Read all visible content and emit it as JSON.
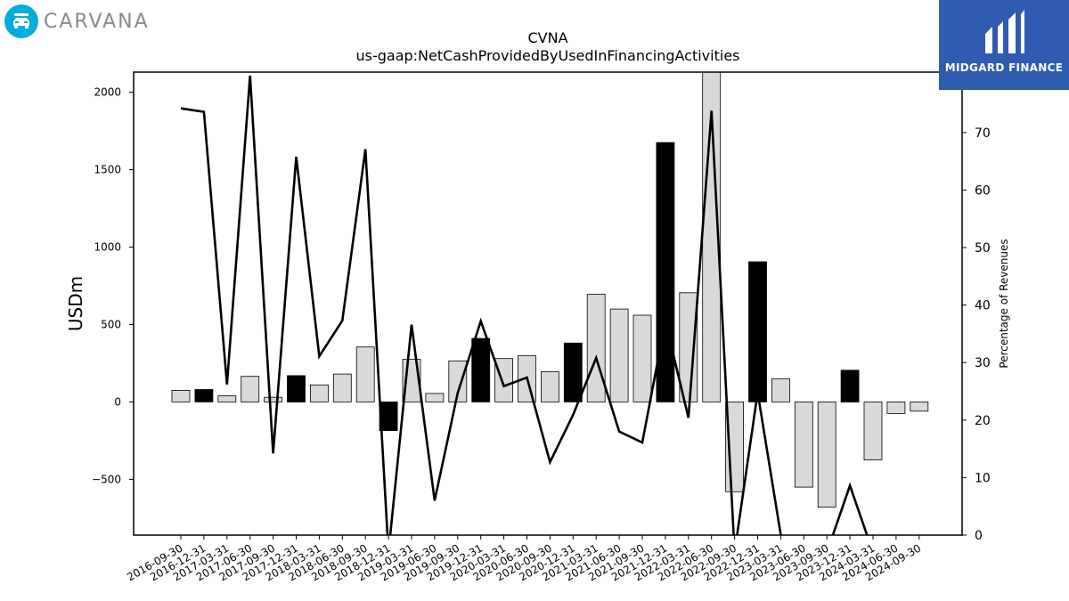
{
  "branding": {
    "company_logo_text": "CARVANA",
    "company_logo_icon": "car-icon",
    "badge_text": "MIDGARD FINANCE",
    "badge_icon": "midgard-logo-icon",
    "colors": {
      "company_accent": "#00aed9",
      "badge_background": "#2f5bb0"
    }
  },
  "chart_data": {
    "type": "bar",
    "title": "CVNA",
    "subtitle": "us-gaap:NetCashProvidedByUsedInFinancingActivities",
    "ylabel": "USDm",
    "y2label": "Percentage of Revenues",
    "ylim": [
      -860,
      2130
    ],
    "y2lim": [
      0,
      80.5
    ],
    "yticks": [
      -500,
      0,
      500,
      1000,
      1500,
      2000
    ],
    "y2ticks": [
      0,
      10,
      20,
      30,
      40,
      50,
      60,
      70,
      80
    ],
    "ytick_labels": [
      "−500",
      "0",
      "500",
      "1000",
      "1500",
      "2000"
    ],
    "y2tick_labels": [
      "0",
      "10",
      "20",
      "30",
      "40",
      "50",
      "60",
      "70",
      "80"
    ],
    "grid": false,
    "categories": [
      "2016-09-30",
      "2016-12-31",
      "2017-03-31",
      "2017-06-30",
      "2017-09-30",
      "2017-12-31",
      "2018-03-31",
      "2018-06-30",
      "2018-09-30",
      "2018-12-31",
      "2019-03-31",
      "2019-06-30",
      "2019-09-30",
      "2019-12-31",
      "2020-03-31",
      "2020-06-30",
      "2020-09-30",
      "2020-12-31",
      "2021-03-31",
      "2021-06-30",
      "2021-09-30",
      "2021-12-31",
      "2022-03-31",
      "2022-06-30",
      "2022-09-30",
      "2022-12-31",
      "2023-03-31",
      "2023-06-30",
      "2023-09-30",
      "2023-12-31",
      "2024-03-31",
      "2024-06-30",
      "2024-09-30"
    ],
    "series": [
      {
        "role": "bars",
        "axis": "left",
        "values": [
          75,
          80,
          40,
          165,
          30,
          170,
          110,
          180,
          355,
          -185,
          275,
          55,
          265,
          410,
          280,
          300,
          195,
          380,
          695,
          600,
          560,
          1675,
          705,
          2130,
          -580,
          905,
          150,
          -550,
          -680,
          205,
          -375,
          -75,
          -60
        ],
        "colors": [
          "#d9d9d9",
          "#000000",
          "#d9d9d9",
          "#d9d9d9",
          "#d9d9d9",
          "#000000",
          "#d9d9d9",
          "#d9d9d9",
          "#d9d9d9",
          "#000000",
          "#d9d9d9",
          "#d9d9d9",
          "#d9d9d9",
          "#000000",
          "#d9d9d9",
          "#d9d9d9",
          "#d9d9d9",
          "#000000",
          "#d9d9d9",
          "#d9d9d9",
          "#d9d9d9",
          "#000000",
          "#d9d9d9",
          "#d9d9d9",
          "#d9d9d9",
          "#000000",
          "#d9d9d9",
          "#d9d9d9",
          "#d9d9d9",
          "#000000",
          "#d9d9d9",
          "#d9d9d9",
          "#d9d9d9"
        ]
      },
      {
        "role": "line",
        "axis": "right",
        "values": [
          74.2,
          73.6,
          26.2,
          79.9,
          14.2,
          65.8,
          31.1,
          37.3,
          67.1,
          -3,
          36.6,
          6.0,
          24.7,
          37.2,
          25.9,
          27.4,
          12.7,
          20.9,
          30.8,
          18.0,
          16.1,
          37.2,
          20.4,
          73.8,
          -3,
          24.8,
          0.1,
          -3,
          -3,
          8.6,
          -3,
          -3,
          -3
        ]
      }
    ]
  }
}
